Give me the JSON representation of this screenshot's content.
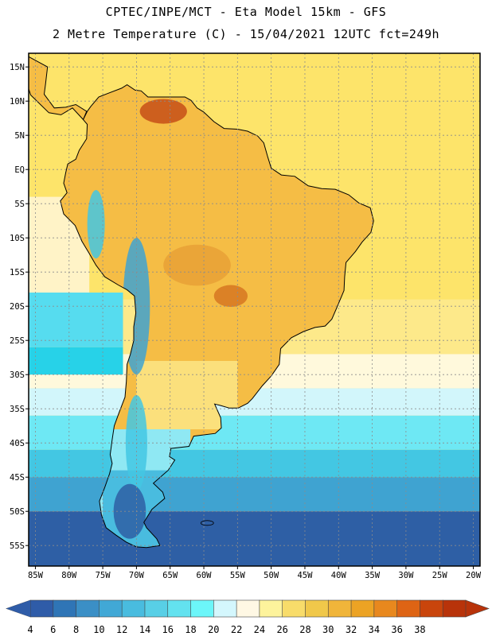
{
  "title": {
    "line1": "CPTEC/INPE/MCT -  Eta Model 15km - GFS",
    "line2": "2 Metre Temperature (C) - 15/04/2021 12UTC fct=249h"
  },
  "map": {
    "lon_range": [
      -86,
      -19
    ],
    "lat_range": [
      -58,
      17
    ],
    "lat_ticks": [
      {
        "value": 15,
        "label": "15N"
      },
      {
        "value": 10,
        "label": "10N"
      },
      {
        "value": 5,
        "label": "5N"
      },
      {
        "value": 0,
        "label": "EQ"
      },
      {
        "value": -5,
        "label": "5S"
      },
      {
        "value": -10,
        "label": "10S"
      },
      {
        "value": -15,
        "label": "15S"
      },
      {
        "value": -20,
        "label": "20S"
      },
      {
        "value": -25,
        "label": "25S"
      },
      {
        "value": -30,
        "label": "30S"
      },
      {
        "value": -35,
        "label": "35S"
      },
      {
        "value": -40,
        "label": "40S"
      },
      {
        "value": -45,
        "label": "45S"
      },
      {
        "value": -50,
        "label": "50S"
      },
      {
        "value": -55,
        "label": "55S"
      }
    ],
    "lon_ticks": [
      {
        "value": -85,
        "label": "85W"
      },
      {
        "value": -80,
        "label": "80W"
      },
      {
        "value": -75,
        "label": "75W"
      },
      {
        "value": -70,
        "label": "70W"
      },
      {
        "value": -65,
        "label": "65W"
      },
      {
        "value": -60,
        "label": "60W"
      },
      {
        "value": -55,
        "label": "55W"
      },
      {
        "value": -50,
        "label": "50W"
      },
      {
        "value": -45,
        "label": "45W"
      },
      {
        "value": -40,
        "label": "40W"
      },
      {
        "value": -35,
        "label": "35W"
      },
      {
        "value": -30,
        "label": "30W"
      },
      {
        "value": -25,
        "label": "25W"
      },
      {
        "value": -20,
        "label": "20W"
      }
    ],
    "colors": {
      "background": "#fde46a",
      "gridline": "#8c8c8c",
      "coastline": "#000000"
    },
    "ocean_bands": [
      {
        "lat_top": -19,
        "lat_bottom": -27,
        "color": "#fde98a"
      },
      {
        "lat_top": -27,
        "lat_bottom": -32,
        "color": "#fff9dc"
      },
      {
        "lat_top": -32,
        "lat_bottom": -36,
        "color": "#d2f6fb"
      },
      {
        "lat_top": -36,
        "lat_bottom": -41,
        "color": "#6ee8f4"
      },
      {
        "lat_top": -41,
        "lat_bottom": -45,
        "color": "#43c7e3"
      },
      {
        "lat_top": -45,
        "lat_bottom": -50,
        "color": "#3fa3d1"
      },
      {
        "lat_top": -50,
        "lat_bottom": -58,
        "color": "#2e5fa5"
      }
    ],
    "pacific_bands": [
      {
        "lat_top": -18,
        "lat_bottom": -26,
        "color": "#56dcef"
      },
      {
        "lat_top": -26,
        "lat_bottom": -30,
        "color": "#27d2e8"
      }
    ],
    "land_fill": "#f5bd45",
    "hotspots": [
      {
        "lon": -66,
        "lat": 8.5,
        "rx": 3.5,
        "ry": 1.8,
        "color": "#c9541a"
      },
      {
        "lon": -56,
        "lat": -18.5,
        "rx": 2.5,
        "ry": 1.6,
        "color": "#d87a22"
      },
      {
        "lon": -61,
        "lat": -14,
        "rx": 5,
        "ry": 3,
        "color": "#e9a236"
      }
    ],
    "cool_regions": [
      {
        "lon": -70,
        "lat": -20,
        "rx": 2,
        "ry": 10,
        "color": "#3fa3d1"
      },
      {
        "lon": -70,
        "lat": -40,
        "rx": 1.6,
        "ry": 7,
        "color": "#43c7e3"
      },
      {
        "lon": -71,
        "lat": -50,
        "rx": 2.4,
        "ry": 4,
        "color": "#2e5fa5"
      },
      {
        "lon": -76,
        "lat": -8,
        "rx": 1.3,
        "ry": 5,
        "color": "#43c7e3"
      }
    ]
  },
  "colorbar": {
    "levels": [
      "4",
      "6",
      "8",
      "10",
      "12",
      "14",
      "16",
      "18",
      "20",
      "22",
      "24",
      "26",
      "28",
      "30",
      "32",
      "34",
      "36",
      "38"
    ],
    "colors": [
      "#2f5ca8",
      "#2f75b6",
      "#3b8fc6",
      "#41a8d6",
      "#49bcdf",
      "#58cfe6",
      "#63e2ef",
      "#6cf6f9",
      "#d4f7fd",
      "#fff8e4",
      "#fdf39c",
      "#f8dc6a",
      "#f0c84a",
      "#f0b53a",
      "#eca324",
      "#e8881e",
      "#de6414",
      "#c9450c",
      "#b8330a"
    ]
  }
}
